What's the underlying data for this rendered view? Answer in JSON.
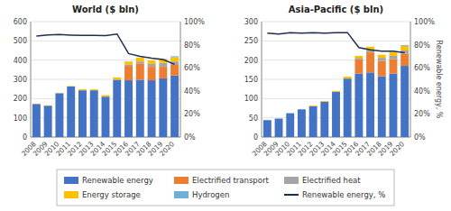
{
  "chart_data": [
    {
      "type": "bar",
      "stacked": true,
      "title": "World ($ bln)",
      "categories": [
        "2008",
        "2009",
        "2010",
        "2011",
        "2012",
        "2013",
        "2014",
        "2015",
        "2016",
        "2017",
        "2018",
        "2019",
        "2020"
      ],
      "ylim": [
        0,
        600
      ],
      "yticks": [
        0,
        100,
        200,
        300,
        400,
        500,
        600
      ],
      "y2lim": [
        0,
        1.0
      ],
      "y2ticks": [
        {
          "value": 0,
          "label": "0%"
        },
        {
          "value": 0.2,
          "label": "20%"
        },
        {
          "value": 0.4,
          "label": "40%"
        },
        {
          "value": 0.6,
          "label": "60%"
        },
        {
          "value": 0.8,
          "label": "80%"
        },
        {
          "value": 1.0,
          "label": "100%"
        }
      ],
      "grid": true,
      "legend": "bottom",
      "series": [
        {
          "name": "Renewable energy",
          "color": "#4472C4",
          "values": [
            172,
            163,
            228,
            263,
            243,
            243,
            210,
            298,
            295,
            298,
            295,
            305,
            320
          ]
        },
        {
          "name": "Electrified transport",
          "color": "#ED7D31",
          "values": [
            0,
            0,
            0,
            0,
            0,
            0,
            0,
            0,
            75,
            85,
            70,
            60,
            55
          ]
        },
        {
          "name": "Electrified heat",
          "color": "#A5A5A5",
          "values": [
            0,
            0,
            0,
            0,
            0,
            0,
            0,
            0,
            8,
            10,
            15,
            20,
            18
          ]
        },
        {
          "name": "Energy storage",
          "color": "#FFC000",
          "values": [
            2,
            2,
            2,
            2,
            5,
            5,
            8,
            12,
            15,
            20,
            18,
            20,
            22
          ]
        },
        {
          "name": "Hydrogen",
          "color": "#70B0D8",
          "values": [
            0,
            0,
            0,
            0,
            0,
            0,
            0,
            0,
            0,
            0,
            0,
            2,
            5
          ]
        },
        {
          "name": "Renewable energy, %",
          "type": "line",
          "axis": "y2",
          "color": "#1F2D4E",
          "values": [
            0.875,
            0.885,
            0.888,
            0.883,
            0.88,
            0.88,
            0.878,
            0.893,
            0.723,
            0.7,
            0.683,
            0.672,
            0.63
          ]
        }
      ]
    },
    {
      "type": "bar",
      "stacked": true,
      "title": "Asia-Pacific ($ bln)",
      "y2label": "Renewable energy, %",
      "categories": [
        "2008",
        "2009",
        "2010",
        "2011",
        "2012",
        "2013",
        "2014",
        "2015",
        "2016",
        "2017",
        "2018",
        "2019",
        "2020"
      ],
      "ylim": [
        0,
        300
      ],
      "yticks": [
        0,
        50,
        100,
        150,
        200,
        250,
        300
      ],
      "y2lim": [
        0,
        1.0
      ],
      "y2ticks": [
        {
          "value": 0,
          "label": "0%"
        },
        {
          "value": 0.2,
          "label": "20%"
        },
        {
          "value": 0.4,
          "label": "40%"
        },
        {
          "value": 0.6,
          "label": "60%"
        },
        {
          "value": 0.8,
          "label": "80%"
        },
        {
          "value": 1.0,
          "label": "100%"
        }
      ],
      "grid": true,
      "series": [
        {
          "name": "Renewable energy",
          "color": "#4472C4",
          "values": [
            44,
            48,
            62,
            72,
            80,
            92,
            118,
            152,
            165,
            168,
            158,
            165,
            185
          ]
        },
        {
          "name": "Electrified transport",
          "color": "#ED7D31",
          "values": [
            0,
            0,
            0,
            0,
            0,
            0,
            0,
            0,
            38,
            52,
            40,
            38,
            32
          ]
        },
        {
          "name": "Electrified heat",
          "color": "#A5A5A5",
          "values": [
            0,
            0,
            0,
            0,
            0,
            0,
            0,
            0,
            3,
            5,
            8,
            8,
            8
          ]
        },
        {
          "name": "Energy storage",
          "color": "#FFC000",
          "values": [
            0,
            0,
            0,
            0,
            2,
            2,
            2,
            5,
            5,
            10,
            8,
            10,
            12
          ]
        },
        {
          "name": "Hydrogen",
          "color": "#70B0D8",
          "values": [
            0,
            0,
            0,
            0,
            0,
            0,
            0,
            0,
            0,
            0,
            0,
            1,
            2
          ]
        },
        {
          "name": "Renewable energy, %",
          "type": "line",
          "axis": "y2",
          "color": "#1F2D4E",
          "values": [
            0.9,
            0.892,
            0.905,
            0.9,
            0.905,
            0.9,
            0.905,
            0.905,
            0.775,
            0.755,
            0.745,
            0.745,
            0.73
          ]
        }
      ]
    }
  ]
}
